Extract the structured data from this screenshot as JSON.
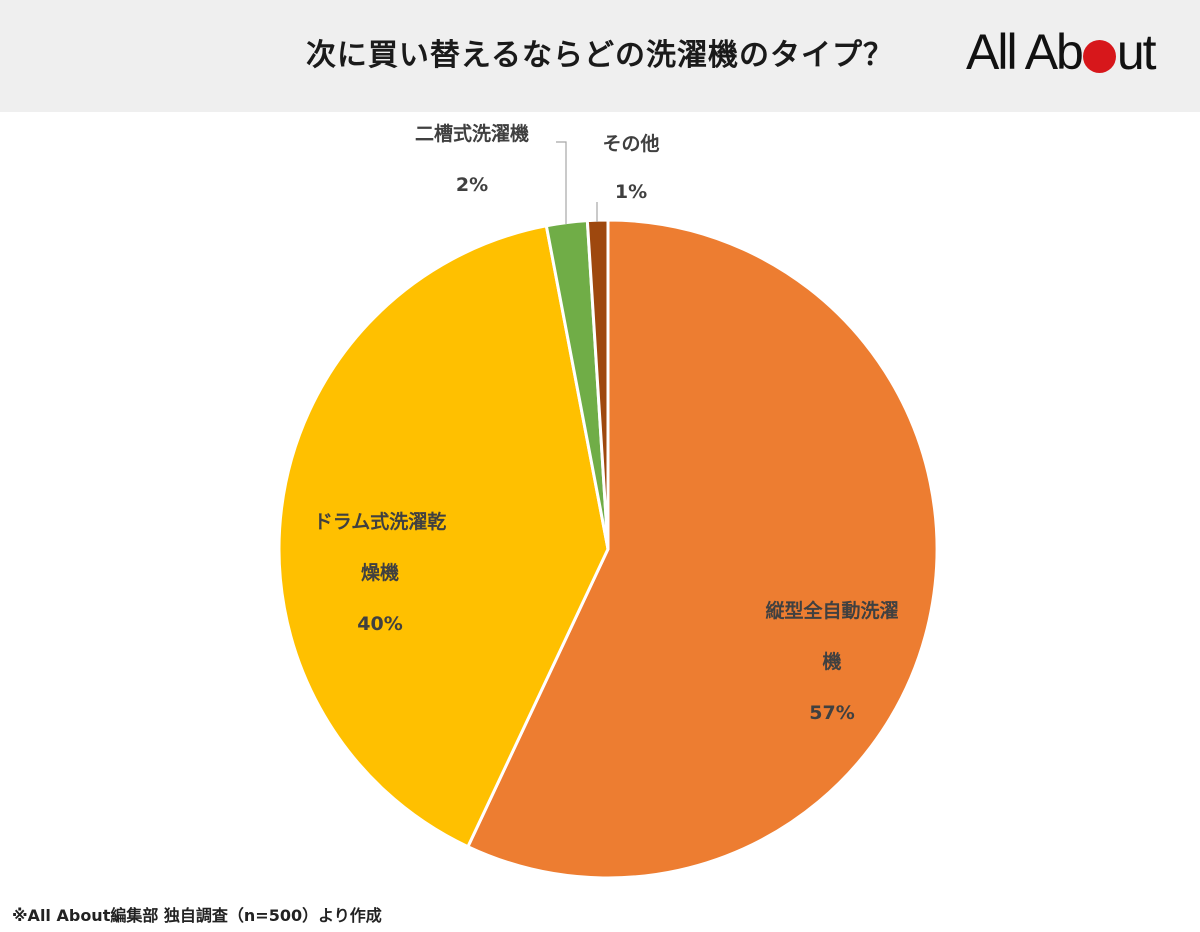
{
  "header": {
    "title": "次に買い替えるならどの洗濯機のタイプ？",
    "logo": {
      "text_before": "All Ab",
      "text_after": "ut",
      "dot_color": "#d7171b"
    }
  },
  "chart_data": {
    "type": "pie",
    "title": "次に買い替えるならどの洗濯機のタイプ？",
    "start": "12 o'clock, clockwise",
    "slices": [
      {
        "label_lines": [
          "縦型全自動洗濯",
          "機"
        ],
        "value": 57,
        "pct_label": "57%",
        "color": "#ed7d31"
      },
      {
        "label_lines": [
          "ドラム式洗濯乾",
          "燥機"
        ],
        "value": 40,
        "pct_label": "40%",
        "color": "#ffc000"
      },
      {
        "label_lines": [
          "二槽式洗濯機"
        ],
        "value": 2,
        "pct_label": "2%",
        "color": "#70ad47"
      },
      {
        "label_lines": [
          "その他"
        ],
        "value": 1,
        "pct_label": "1%",
        "color": "#9e480e"
      }
    ]
  },
  "footer": {
    "note": "※All About編集部 独自調査（n=500）より作成"
  }
}
